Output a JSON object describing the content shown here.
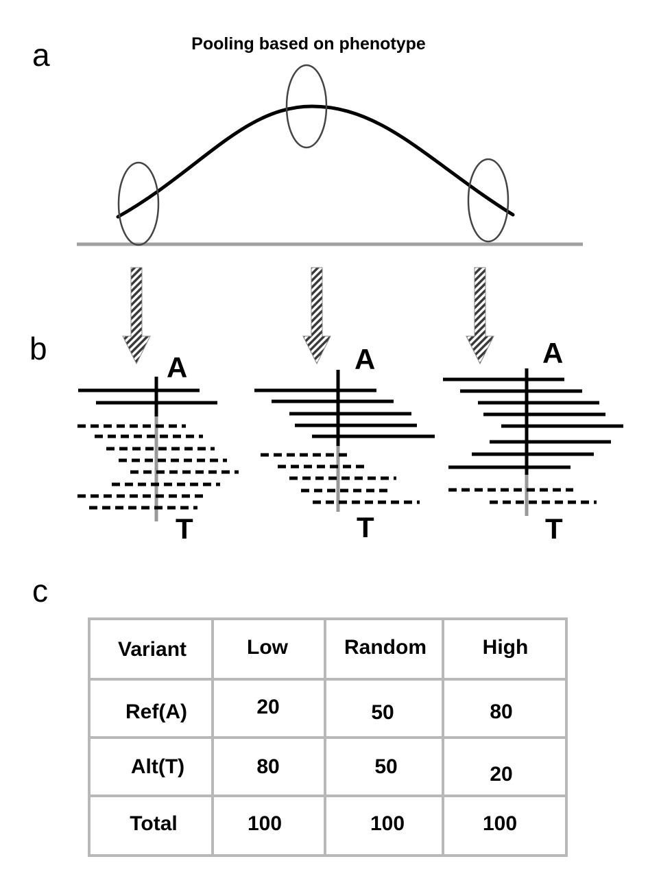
{
  "panels": {
    "a": "a",
    "b": "b",
    "c": "c"
  },
  "title": "Pooling based on phenotype",
  "alleles": {
    "ref": "A",
    "alt": "T"
  },
  "pools": [
    {
      "ref_reads": 2,
      "alt_reads": 8
    },
    {
      "ref_reads": 5,
      "alt_reads": 5
    },
    {
      "ref_reads": 8,
      "alt_reads": 2
    }
  ],
  "table": {
    "headers": [
      "Variant",
      "Low",
      "Random",
      "High"
    ],
    "rows": [
      [
        "Ref(A)",
        "20",
        "50",
        "80"
      ],
      [
        "Alt(T)",
        "80",
        "50",
        "20"
      ],
      [
        "Total",
        "100",
        "100",
        "100"
      ]
    ]
  },
  "colors": {
    "ink": "#000000",
    "axis": "#a0a0a0",
    "grid": "#b8b8b8",
    "ellipse": "#444444"
  }
}
